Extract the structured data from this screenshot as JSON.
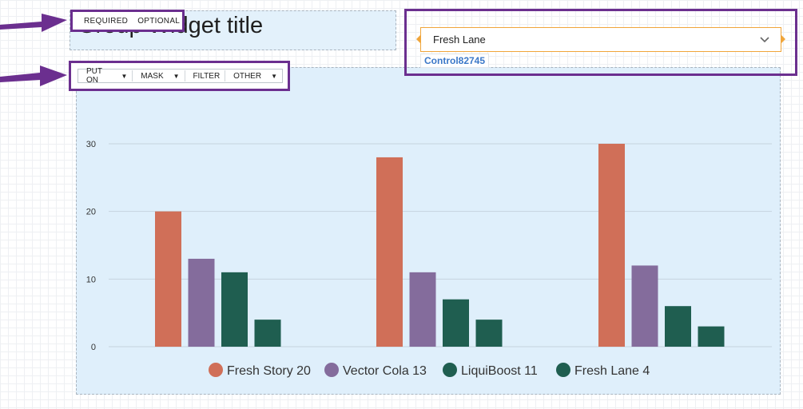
{
  "title_panel": {
    "title": "Group Widget title"
  },
  "tags": {
    "required": "REQUIRED",
    "optional": "OPTIONAL"
  },
  "toolbar": {
    "items": [
      {
        "label": "PUT ON",
        "has_caret": true
      },
      {
        "label": "MASK",
        "has_caret": true
      },
      {
        "label": "FILTER",
        "has_caret": false
      },
      {
        "label": "OTHER",
        "has_caret": true
      }
    ]
  },
  "selector": {
    "value": "Fresh Lane",
    "control_label": "Control82745",
    "icon": "chevron-down-icon",
    "accent": "#f0a53a"
  },
  "annotation": {
    "frame_color": "#6b2f8f",
    "arrow_color": "#6b2f8f"
  },
  "chart_data": {
    "type": "bar",
    "categories": [
      "",
      "",
      ""
    ],
    "series": [
      {
        "name": "Fresh Story",
        "color": "#d06f58",
        "values": [
          20,
          28,
          30
        ]
      },
      {
        "name": "Vector Cola",
        "color": "#846c9c",
        "values": [
          13,
          11,
          12
        ]
      },
      {
        "name": "LiquiBoost",
        "color": "#1f5e50",
        "values": [
          11,
          7,
          6
        ]
      },
      {
        "name": "Fresh Lane",
        "color": "#1f5e50",
        "values": [
          4,
          4,
          3
        ]
      }
    ],
    "legend": [
      "Fresh Story 20",
      "Vector Cola 13",
      "LiquiBoost 11",
      "Fresh Lane 4"
    ],
    "yticks": [
      0,
      10,
      20,
      30
    ],
    "ylim": [
      0,
      30
    ],
    "grid": true,
    "legend_position": "bottom"
  }
}
